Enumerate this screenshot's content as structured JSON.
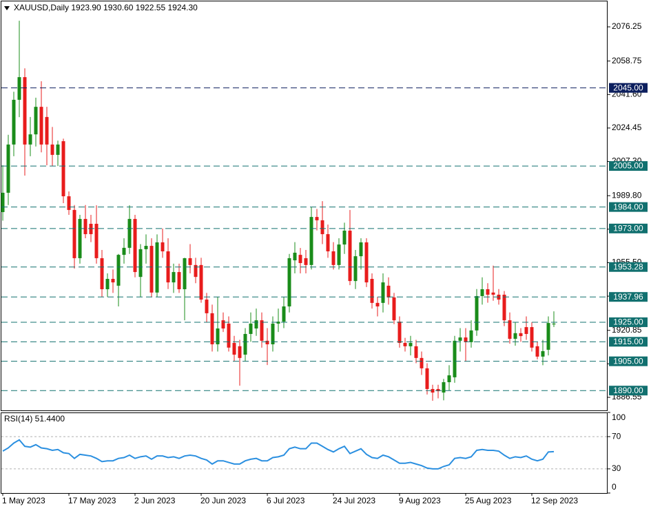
{
  "chart_data": [
    {
      "type": "candlestick",
      "title": "XAUUSD,Daily  1923.90 1930.60 1922.55 1924.30",
      "categories": [
        "1 May 2023",
        null,
        null,
        null,
        null,
        null,
        null,
        null,
        null,
        null,
        null,
        null,
        "17 May 2023",
        null,
        null,
        null,
        null,
        null,
        null,
        null,
        null,
        null,
        null,
        null,
        "2 Jun 2023",
        null,
        null,
        null,
        null,
        null,
        null,
        null,
        null,
        null,
        null,
        null,
        "20 Jun 2023",
        null,
        null,
        null,
        null,
        null,
        null,
        null,
        null,
        null,
        null,
        null,
        "6 Jul 2023",
        null,
        null,
        null,
        null,
        null,
        null,
        null,
        null,
        null,
        null,
        null,
        "24 Jul 2023",
        null,
        null,
        null,
        null,
        null,
        null,
        null,
        null,
        null,
        null,
        null,
        "9 Aug 2023",
        null,
        null,
        null,
        null,
        null,
        null,
        null,
        null,
        null,
        null,
        null,
        "25 Aug 2023",
        null,
        null,
        null,
        null,
        null,
        null,
        null,
        null,
        null,
        null,
        null,
        "12 Sep 2023",
        null,
        null,
        null,
        null
      ],
      "open": [
        1981.4,
        1991.3,
        2016.0,
        2038.9,
        2050.5,
        2016.0,
        2021.2,
        2035.3,
        2030.1,
        2016.0,
        2010.7,
        2017.7,
        1989.5,
        1982.5,
        1957.8,
        1977.9,
        1975.4,
        1975.4,
        1957.8,
        1941.9,
        1947.2,
        1943.7,
        1959.5,
        1963.1,
        1977.9,
        1948.2,
        1962.4,
        1964.1,
        1940.2,
        1965.9,
        1961.3,
        1945.4,
        1950.7,
        1941.9,
        1957.8,
        1954.3,
        1954.3,
        1936.6,
        1929.6,
        1913.7,
        1926.0,
        1924.3,
        1914.4,
        1912.7,
        1908.4,
        1919.0,
        1921.8,
        1926.0,
        1915.5,
        1913.7,
        1924.3,
        1925.3,
        1933.1,
        1956.7,
        1959.5,
        1957.8,
        1954.3,
        1978.9,
        1977.2,
        1970.1,
        1961.3,
        1954.3,
        1964.8,
        1971.9,
        1946.1,
        1958.8,
        1965.9,
        1947.2,
        1934.9,
        1934.9,
        1943.7,
        1937.7,
        1925.3,
        1914.4,
        1912.7,
        1912.7,
        1906.7,
        1901.4,
        1890.8,
        1890.8,
        1889.0,
        1894.3,
        1896.8,
        1915.5,
        1917.2,
        1914.8,
        1920.8,
        1938.4,
        1941.9,
        1940.2,
        1939.1,
        1939.1,
        1926.0,
        1916.5,
        1919.4,
        1922.5,
        1922.5,
        1912.7,
        1907.4,
        1910.9,
        1923.9
      ],
      "high": [
        2005.4,
        2021.0,
        2043.0,
        2079.4,
        2055.0,
        2030.1,
        2040.0,
        2048.4,
        2035.3,
        2025.0,
        2018.0,
        2019.0,
        1992.0,
        1985.0,
        1980.0,
        1985.0,
        1980.0,
        1984.9,
        1962.0,
        1950.0,
        1952.0,
        1960.0,
        1968.0,
        1984.9,
        1980.0,
        1965.0,
        1970.0,
        1968.0,
        1970.0,
        1973.0,
        1968.0,
        1955.0,
        1955.0,
        1958.0,
        1965.0,
        1958.0,
        1958.0,
        1940.0,
        1934.0,
        1938.0,
        1930.0,
        1928.0,
        1918.0,
        1916.0,
        1922.0,
        1930.0,
        1932.0,
        1930.0,
        1922.0,
        1928.0,
        1932.0,
        1938.0,
        1960.0,
        1966.0,
        1963.0,
        1962.0,
        1984.0,
        1983.0,
        1987.0,
        1975.0,
        1966.0,
        1968.0,
        1976.0,
        1982.5,
        1962.0,
        1968.0,
        1968.0,
        1950.0,
        1938.0,
        1950.0,
        1948.0,
        1940.0,
        1928.0,
        1917.0,
        1918.0,
        1916.0,
        1910.0,
        1904.0,
        1893.0,
        1893.0,
        1896.0,
        1903.0,
        1918.0,
        1922.0,
        1922.0,
        1926.0,
        1942.0,
        1948.0,
        1945.0,
        1954.0,
        1942.0,
        1941.0,
        1930.0,
        1925.0,
        1922.0,
        1928.0,
        1925.0,
        1915.0,
        1916.0,
        1928.0,
        1930.6
      ],
      "low": [
        1977.0,
        1985.0,
        2010.0,
        2030.0,
        2000.1,
        2010.0,
        2015.0,
        2012.0,
        2005.4,
        2005.0,
        2005.0,
        1986.0,
        1980.0,
        1952.5,
        1955.0,
        1968.0,
        1966.0,
        1955.0,
        1938.0,
        1938.0,
        1940.0,
        1933.1,
        1955.0,
        1960.0,
        1948.0,
        1938.0,
        1955.0,
        1938.0,
        1938.0,
        1958.0,
        1942.0,
        1940.0,
        1940.0,
        1926.0,
        1950.0,
        1945.0,
        1935.0,
        1925.0,
        1910.0,
        1910.0,
        1920.0,
        1910.0,
        1905.0,
        1892.5,
        1905.0,
        1915.0,
        1918.0,
        1912.0,
        1903.1,
        1910.0,
        1920.0,
        1922.0,
        1930.0,
        1950.0,
        1950.0,
        1950.0,
        1952.0,
        1972.0,
        1965.0,
        1958.0,
        1952.0,
        1952.0,
        1960.0,
        1944.0,
        1942.0,
        1952.0,
        1943.0,
        1932.0,
        1928.0,
        1930.0,
        1934.0,
        1924.0,
        1912.0,
        1910.0,
        1908.0,
        1904.0,
        1898.0,
        1888.0,
        1884.8,
        1886.0,
        1885.0,
        1890.0,
        1894.0,
        1910.0,
        1905.0,
        1912.0,
        1918.0,
        1934.0,
        1935.0,
        1936.0,
        1934.0,
        1923.0,
        1914.0,
        1913.0,
        1915.0,
        1916.0,
        1910.0,
        1906.0,
        1903.0,
        1908.0,
        1922.55
      ],
      "close": [
        1991.3,
        2016.0,
        2038.9,
        2050.5,
        2016.0,
        2021.2,
        2035.3,
        2016.0,
        2016.0,
        2010.7,
        2016.0,
        1989.5,
        1982.5,
        1957.8,
        1977.9,
        1970.1,
        1970.1,
        1957.8,
        1941.9,
        1947.2,
        1945.4,
        1959.5,
        1963.1,
        1977.9,
        1950.7,
        1962.4,
        1964.1,
        1940.2,
        1965.9,
        1961.3,
        1945.4,
        1950.7,
        1941.9,
        1957.8,
        1954.3,
        1948.2,
        1936.6,
        1929.6,
        1913.7,
        1921.8,
        1921.8,
        1912.0,
        1908.4,
        1906.7,
        1919.0,
        1924.3,
        1926.0,
        1915.5,
        1913.7,
        1924.3,
        1925.3,
        1933.1,
        1957.8,
        1960.6,
        1955.3,
        1954.3,
        1978.9,
        1977.2,
        1970.1,
        1961.3,
        1954.3,
        1964.8,
        1971.9,
        1946.1,
        1958.8,
        1965.9,
        1945.4,
        1934.9,
        1933.1,
        1945.4,
        1937.7,
        1926.0,
        1914.4,
        1912.7,
        1914.4,
        1906.7,
        1901.4,
        1890.8,
        1889.0,
        1889.7,
        1894.3,
        1897.8,
        1915.5,
        1917.2,
        1914.8,
        1920.8,
        1938.4,
        1941.9,
        1939.1,
        1939.1,
        1936.6,
        1926.0,
        1916.5,
        1919.4,
        1917.9,
        1919.0,
        1912.0,
        1907.4,
        1910.2,
        1924.6,
        1924.3
      ],
      "up_color": "#1a8c1a",
      "down_color": "#e81c1c",
      "ylim": [
        1879.85,
        2089.3
      ],
      "yticks": [
        2076.25,
        2058.75,
        {
          "value": 2041.6,
          "label": "2041.60"
        },
        2024.45,
        {
          "value": 2007.3,
          "label": "2007.30"
        },
        {
          "value": 1989.8,
          "label": "1989.80"
        },
        1972.65,
        {
          "value": 1955.5,
          "label": "1955.50"
        },
        1938.35,
        1920.85,
        {
          "value": 1903.7,
          "label": "1903.70"
        },
        1886.55
      ],
      "levels": [
        {
          "value": 2045,
          "label": "2045.00"
        },
        {
          "value": 2005,
          "label": "2005.00"
        },
        {
          "value": 1984,
          "label": "1984.00"
        },
        {
          "value": 1973,
          "label": "1973.00"
        },
        {
          "value": 1953.28,
          "label": "1953.28"
        },
        {
          "value": 1937.96,
          "label": "1937.96"
        },
        {
          "value": 1925,
          "label": "1925.00"
        },
        {
          "value": 1915,
          "label": "1915.00"
        },
        {
          "value": 1905,
          "label": "1905.00"
        },
        {
          "value": 1890,
          "label": "1890.00"
        }
      ],
      "level_colors": [
        "#0c1f5e",
        "#11706f",
        "#11706f",
        "#11706f",
        "#11706f",
        "#11706f",
        "#11706f",
        "#11706f",
        "#11706f",
        "#11706f"
      ]
    },
    {
      "type": "line",
      "title": "RSI(14) 51.4400",
      "values": [
        52,
        56,
        62,
        66,
        58,
        57,
        60,
        56,
        55,
        53,
        54,
        50,
        49,
        43,
        48,
        47,
        46,
        43,
        39,
        40,
        40,
        43,
        44,
        47,
        43,
        45,
        46,
        42,
        46,
        46,
        44,
        45,
        43,
        46,
        47,
        46,
        43,
        41,
        36,
        40,
        40,
        38,
        36,
        36,
        40,
        42,
        43,
        40,
        40,
        44,
        45,
        47,
        55,
        57,
        55,
        55,
        62,
        62,
        58,
        54,
        51,
        55,
        58,
        49,
        52,
        55,
        48,
        44,
        43,
        47,
        45,
        41,
        37,
        37,
        38,
        36,
        34,
        31,
        30,
        30,
        33,
        35,
        43,
        44,
        43,
        45,
        53,
        54,
        53,
        53,
        52,
        47,
        43,
        45,
        44,
        46,
        42,
        40,
        42,
        51,
        51.44
      ],
      "color": "#2a8fe0",
      "ylim": [
        0,
        100
      ],
      "yticks": [
        0,
        30,
        70,
        100
      ],
      "levels": [
        30,
        70
      ]
    }
  ]
}
